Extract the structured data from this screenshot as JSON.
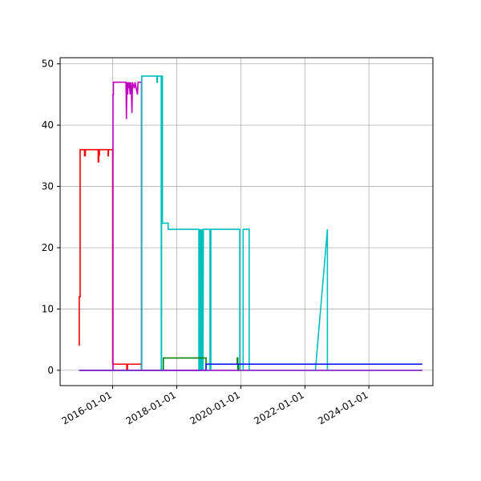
{
  "chart_data": {
    "type": "line",
    "title": "",
    "xlabel": "",
    "ylabel": "",
    "x_type": "date",
    "xlim": [
      "2014-05-12",
      "2025-12-31"
    ],
    "ylim": [
      -2.5,
      51
    ],
    "grid": true,
    "xticks": [
      "2016-01-01",
      "2018-01-01",
      "2020-01-01",
      "2022-01-01",
      "2024-01-01"
    ],
    "yticks": [
      0,
      10,
      20,
      30,
      40,
      50
    ],
    "colors": {
      "red": "#ff0000",
      "magenta": "#bf00bf",
      "cyan": "#00bfbf",
      "green": "#008000",
      "blue": "#0000ff",
      "purple": "#9933cc"
    },
    "series": [
      {
        "color": "#ff0000",
        "points": [
          [
            "2014-12-16",
            4
          ],
          [
            "2014-12-16",
            12
          ],
          [
            "2014-12-26",
            12
          ],
          [
            "2014-12-26",
            36
          ],
          [
            "2015-02-10",
            36
          ],
          [
            "2015-02-14",
            36
          ],
          [
            "2015-02-14",
            35
          ],
          [
            "2015-02-20",
            35
          ],
          [
            "2015-02-20",
            36
          ],
          [
            "2015-02-24",
            35
          ],
          [
            "2015-02-24",
            36
          ],
          [
            "2015-07-20",
            36
          ],
          [
            "2015-07-20",
            34
          ],
          [
            "2015-07-26",
            34
          ],
          [
            "2015-07-26",
            36
          ],
          [
            "2015-08-03",
            35
          ],
          [
            "2015-08-03",
            36
          ],
          [
            "2015-11-10",
            36
          ],
          [
            "2015-11-10",
            35
          ],
          [
            "2015-11-14",
            35
          ],
          [
            "2015-11-14",
            36
          ],
          [
            "2016-01-01",
            36
          ],
          [
            "2016-01-01",
            1
          ],
          [
            "2016-06-10",
            1
          ],
          [
            "2016-06-10",
            0
          ],
          [
            "2016-06-18",
            0
          ],
          [
            "2016-06-18",
            1
          ],
          [
            "2016-11-25",
            1
          ],
          [
            "2016-11-25",
            0
          ],
          [
            "2018-12-01",
            0
          ]
        ]
      },
      {
        "color": "#bf00bf",
        "points": [
          [
            "2014-12-16",
            0
          ],
          [
            "2016-01-05",
            0
          ],
          [
            "2016-01-05",
            45
          ],
          [
            "2016-01-10",
            45
          ],
          [
            "2016-01-10",
            47
          ],
          [
            "2016-06-01",
            47
          ],
          [
            "2016-06-06",
            41
          ],
          [
            "2016-06-12",
            47
          ],
          [
            "2016-06-20",
            45
          ],
          [
            "2016-06-26",
            47
          ],
          [
            "2016-07-04",
            46
          ],
          [
            "2016-07-10",
            47
          ],
          [
            "2016-07-18",
            45
          ],
          [
            "2016-07-24",
            47
          ],
          [
            "2016-08-01",
            46
          ],
          [
            "2016-08-08",
            42
          ],
          [
            "2016-08-14",
            47
          ],
          [
            "2016-09-05",
            46
          ],
          [
            "2016-09-12",
            47
          ],
          [
            "2016-10-10",
            45
          ],
          [
            "2016-10-16",
            47
          ],
          [
            "2016-11-25",
            47
          ],
          [
            "2016-11-25",
            0
          ],
          [
            "2025-09-01",
            0
          ]
        ]
      },
      {
        "color": "#00bfbf",
        "points": [
          [
            "2016-01-10",
            0
          ],
          [
            "2016-11-28",
            0
          ],
          [
            "2016-11-28",
            48
          ],
          [
            "2017-05-20",
            48
          ],
          [
            "2017-05-20",
            47
          ],
          [
            "2017-05-26",
            47
          ],
          [
            "2017-05-26",
            48
          ],
          [
            "2017-07-08",
            48
          ],
          [
            "2017-07-08",
            0
          ],
          [
            "2017-07-12",
            0
          ],
          [
            "2017-07-12",
            48
          ],
          [
            "2017-07-16",
            47
          ],
          [
            "2017-07-16",
            48
          ],
          [
            "2017-07-22",
            48
          ],
          [
            "2017-07-22",
            24
          ],
          [
            "2017-09-25",
            24
          ],
          [
            "2017-09-25",
            23
          ],
          [
            "2018-09-10",
            23
          ],
          [
            "2018-09-10",
            0
          ],
          [
            "2018-09-14",
            0
          ],
          [
            "2018-09-14",
            23
          ],
          [
            "2018-09-20",
            0
          ],
          [
            "2018-09-24",
            23
          ],
          [
            "2018-09-28",
            0
          ],
          [
            "2018-10-02",
            23
          ],
          [
            "2018-10-08",
            0
          ],
          [
            "2018-10-12",
            23
          ],
          [
            "2018-10-18",
            0
          ],
          [
            "2018-10-22",
            23
          ],
          [
            "2018-10-28",
            0
          ],
          [
            "2018-11-01",
            23
          ],
          [
            "2019-01-15",
            23
          ],
          [
            "2019-01-15",
            0
          ],
          [
            "2019-01-25",
            0
          ],
          [
            "2019-01-25",
            23
          ],
          [
            "2019-12-20",
            23
          ],
          [
            "2019-12-20",
            0
          ],
          [
            "2020-01-28",
            0
          ],
          [
            "2020-01-28",
            23
          ],
          [
            "2020-04-06",
            23
          ],
          [
            "2020-04-06",
            0
          ],
          [
            "2022-05-01",
            0
          ],
          [
            "2022-09-15",
            23
          ],
          [
            "2022-09-15",
            0
          ],
          [
            "2025-09-01",
            0
          ]
        ]
      },
      {
        "color": "#008000",
        "points": [
          [
            "2014-12-16",
            0
          ],
          [
            "2017-08-01",
            0
          ],
          [
            "2017-08-01",
            2
          ],
          [
            "2018-12-01",
            2
          ],
          [
            "2018-12-01",
            1
          ],
          [
            "2019-11-22",
            1
          ],
          [
            "2019-11-22",
            2
          ],
          [
            "2019-11-28",
            2
          ],
          [
            "2019-11-28",
            0
          ],
          [
            "2019-12-04",
            0
          ],
          [
            "2019-12-04",
            1
          ],
          [
            "2025-09-01",
            1
          ]
        ]
      },
      {
        "color": "#0000ff",
        "points": [
          [
            "2014-12-16",
            0
          ],
          [
            "2018-12-01",
            0
          ],
          [
            "2018-12-01",
            1
          ],
          [
            "2025-09-01",
            1
          ]
        ]
      },
      {
        "color": "#9933cc",
        "points": [
          [
            "2014-12-16",
            0
          ],
          [
            "2025-09-01",
            0
          ]
        ]
      }
    ]
  }
}
